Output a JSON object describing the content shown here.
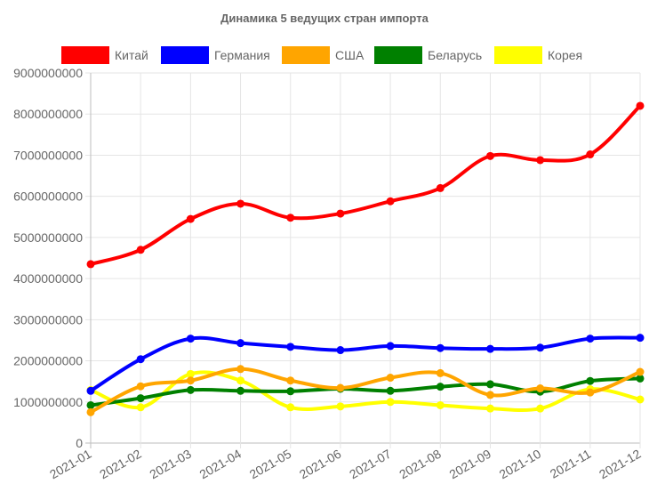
{
  "chart_data": {
    "type": "line",
    "title": "Динамика 5 ведущих стран импорта",
    "categories": [
      "2021-01",
      "2021-02",
      "2021-03",
      "2021-04",
      "2021-05",
      "2021-06",
      "2021-07",
      "2021-08",
      "2021-09",
      "2021-10",
      "2021-11",
      "2021-12"
    ],
    "ylim": [
      0,
      9000000000
    ],
    "ytick_labels": [
      "0",
      "1000000000",
      "2000000000",
      "3000000000",
      "4000000000",
      "5000000000",
      "6000000000",
      "7000000000",
      "8000000000",
      "9000000000"
    ],
    "grid": true,
    "smooth": true,
    "legend_position": "top",
    "series": [
      {
        "name": "Китай",
        "color": "#ff0000",
        "values": [
          4350000000,
          4700000000,
          5450000000,
          5820000000,
          5480000000,
          5580000000,
          5880000000,
          6200000000,
          6980000000,
          6880000000,
          7020000000,
          8200000000
        ]
      },
      {
        "name": "Германия",
        "color": "#0000ff",
        "values": [
          1270000000,
          2040000000,
          2540000000,
          2430000000,
          2340000000,
          2260000000,
          2360000000,
          2310000000,
          2290000000,
          2320000000,
          2540000000,
          2560000000
        ]
      },
      {
        "name": "США",
        "color": "#ffa500",
        "values": [
          750000000,
          1380000000,
          1520000000,
          1800000000,
          1520000000,
          1340000000,
          1590000000,
          1700000000,
          1170000000,
          1330000000,
          1230000000,
          1730000000
        ]
      },
      {
        "name": "Беларусь",
        "color": "#008000",
        "values": [
          920000000,
          1090000000,
          1290000000,
          1270000000,
          1260000000,
          1320000000,
          1270000000,
          1370000000,
          1430000000,
          1250000000,
          1510000000,
          1570000000
        ]
      },
      {
        "name": "Корея",
        "color": "#ffff00",
        "values": [
          1290000000,
          870000000,
          1680000000,
          1520000000,
          870000000,
          890000000,
          1000000000,
          920000000,
          840000000,
          840000000,
          1310000000,
          1060000000
        ]
      }
    ]
  }
}
